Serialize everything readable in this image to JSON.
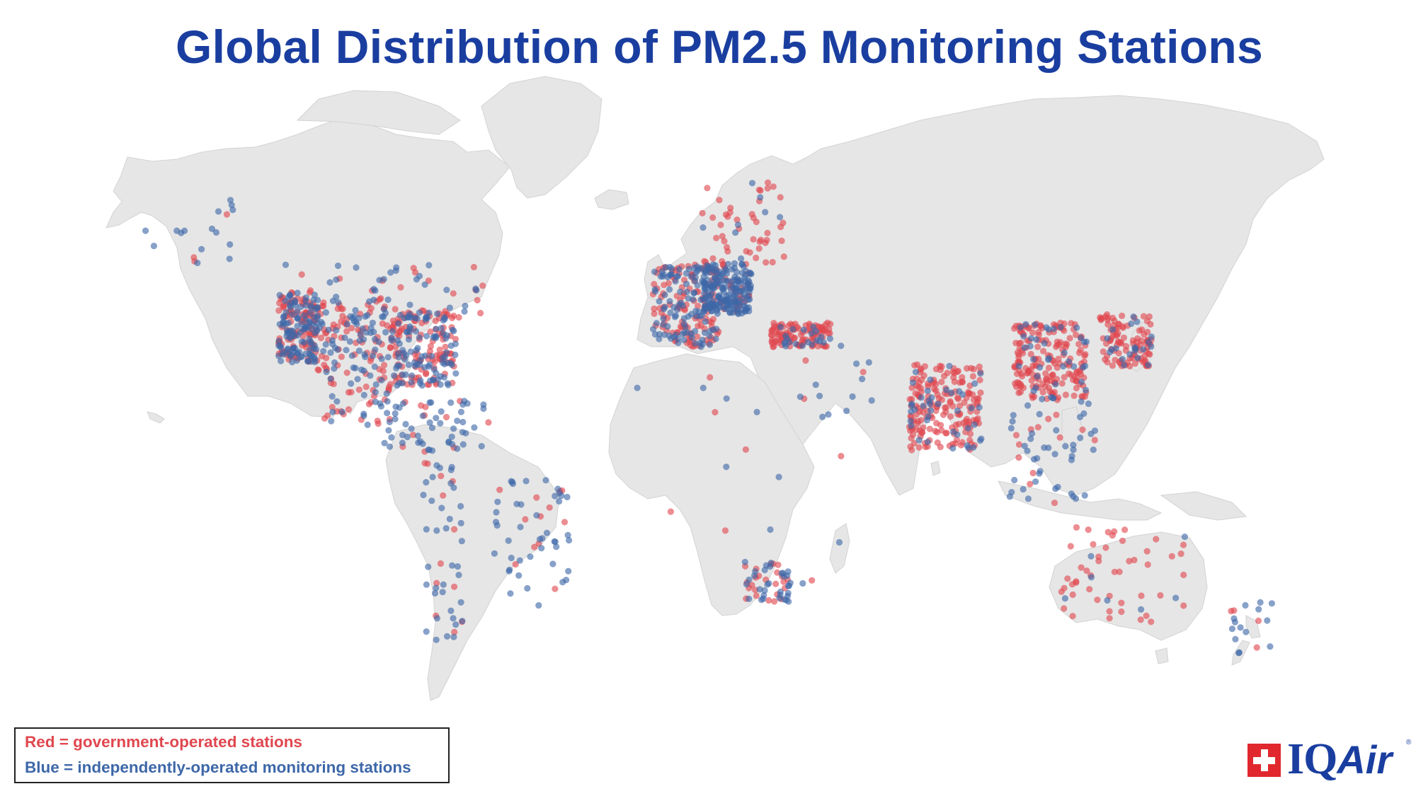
{
  "title": "Global Distribution of PM2.5 Monitoring Stations",
  "legend": {
    "red_label": "Red = government-operated stations",
    "blue_label": "Blue = independently-operated monitoring stations"
  },
  "logo": {
    "text_iq": "IQ",
    "text_air": "Air",
    "registered": "®",
    "icon": "swiss-cross-icon"
  },
  "colors": {
    "title": "#1a3ea0",
    "government": "#e0474f",
    "independent": "#3d67a8",
    "land": "#e6e6e6",
    "border": "#cfcfcf",
    "logo_cross": "#e0282e"
  },
  "map": {
    "projection": "Miller",
    "lon_range": [
      -170,
      190
    ],
    "lat_range": [
      -58,
      84
    ],
    "station_clusters": [
      {
        "region": "USA west",
        "lon": [
          -124,
          -112
        ],
        "lat": [
          32,
          49
        ],
        "density": "very high",
        "mix": "both"
      },
      {
        "region": "USA central",
        "lon": [
          -112,
          -90
        ],
        "lat": [
          30,
          48
        ],
        "density": "high",
        "mix": "both"
      },
      {
        "region": "USA east",
        "lon": [
          -90,
          -70
        ],
        "lat": [
          26,
          45
        ],
        "density": "very high",
        "mix": "both"
      },
      {
        "region": "Canada south",
        "lon": [
          -125,
          -60
        ],
        "lat": [
          43,
          55
        ],
        "density": "medium",
        "mix": "both"
      },
      {
        "region": "Alaska",
        "lon": [
          -165,
          -135
        ],
        "lat": [
          55,
          68
        ],
        "density": "low",
        "mix": "blue"
      },
      {
        "region": "Mexico",
        "lon": [
          -110,
          -88
        ],
        "lat": [
          15,
          30
        ],
        "density": "medium",
        "mix": "both"
      },
      {
        "region": "Central America & Caribbean",
        "lon": [
          -92,
          -60
        ],
        "lat": [
          9,
          22
        ],
        "density": "medium",
        "mix": "blue"
      },
      {
        "region": "South America west",
        "lon": [
          -80,
          -68
        ],
        "lat": [
          -45,
          10
        ],
        "density": "medium",
        "mix": "blue"
      },
      {
        "region": "South America east",
        "lon": [
          -60,
          -35
        ],
        "lat": [
          -35,
          0
        ],
        "density": "medium",
        "mix": "blue"
      },
      {
        "region": "Western Europe",
        "lon": [
          -10,
          10
        ],
        "lat": [
          36,
          55
        ],
        "density": "very high",
        "mix": "both"
      },
      {
        "region": "Central Europe",
        "lon": [
          5,
          20
        ],
        "lat": [
          44,
          55
        ],
        "density": "very high",
        "mix": "blue"
      },
      {
        "region": "Scandinavia",
        "lon": [
          5,
          30
        ],
        "lat": [
          55,
          70
        ],
        "density": "medium",
        "mix": "red"
      },
      {
        "region": "Turkey",
        "lon": [
          26,
          44
        ],
        "lat": [
          36,
          42
        ],
        "density": "high",
        "mix": "red"
      },
      {
        "region": "Middle East",
        "lon": [
          34,
          58
        ],
        "lat": [
          15,
          38
        ],
        "density": "low",
        "mix": "blue"
      },
      {
        "region": "Africa",
        "lon": [
          -17,
          50
        ],
        "lat": [
          -35,
          35
        ],
        "density": "low",
        "mix": "both"
      },
      {
        "region": "South Africa",
        "lon": [
          18,
          32
        ],
        "lat": [
          -34,
          -23
        ],
        "density": "medium",
        "mix": "both"
      },
      {
        "region": "India",
        "lon": [
          68,
          90
        ],
        "lat": [
          8,
          32
        ],
        "density": "very high",
        "mix": "red"
      },
      {
        "region": "China",
        "lon": [
          100,
          122
        ],
        "lat": [
          22,
          42
        ],
        "density": "very high",
        "mix": "red"
      },
      {
        "region": "Korea & Japan",
        "lon": [
          126,
          142
        ],
        "lat": [
          31,
          44
        ],
        "density": "high",
        "mix": "red"
      },
      {
        "region": "Southeast Asia",
        "lon": [
          97,
          125
        ],
        "lat": [
          -8,
          22
        ],
        "density": "medium",
        "mix": "blue"
      },
      {
        "region": "Australia",
        "lon": [
          114,
          154
        ],
        "lat": [
          -39,
          -12
        ],
        "density": "medium",
        "mix": "red"
      },
      {
        "region": "New Zealand",
        "lon": [
          166,
          179
        ],
        "lat": [
          -47,
          -34
        ],
        "density": "low",
        "mix": "both"
      }
    ]
  }
}
